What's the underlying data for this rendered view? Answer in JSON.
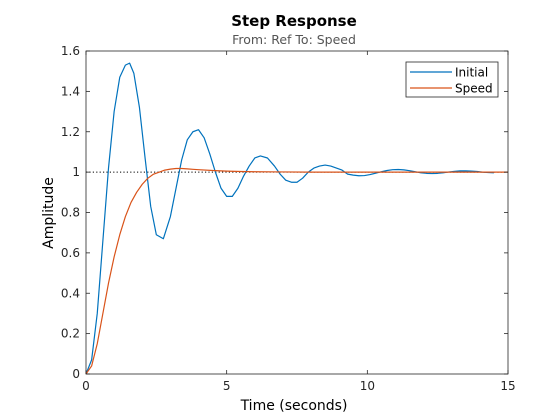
{
  "chart_data": {
    "type": "line",
    "title": "Step Response",
    "subtitle": "From: Ref  To: Speed",
    "xlabel": "Time (seconds)",
    "ylabel": "Amplitude",
    "xlim": [
      0,
      15
    ],
    "ylim": [
      0,
      1.6
    ],
    "xticks": [
      0,
      5,
      10,
      15
    ],
    "xtick_labels": [
      "0",
      "5",
      "10",
      "15"
    ],
    "yticks": [
      0,
      0.2,
      0.4,
      0.6,
      0.8,
      1.0,
      1.2,
      1.4,
      1.6
    ],
    "ytick_labels": [
      "0",
      "0.2",
      "0.4",
      "0.6",
      "0.8",
      "1",
      "1.2",
      "1.4",
      "1.6"
    ],
    "grid": false,
    "legend_position": "top-right",
    "reference_line": {
      "y": 1,
      "style": "dotted",
      "color": "#000000"
    },
    "series": [
      {
        "name": "Initial",
        "color": "#0072bd",
        "x": [
          0,
          0.2,
          0.4,
          0.6,
          0.8,
          1.0,
          1.2,
          1.4,
          1.55,
          1.7,
          1.9,
          2.1,
          2.3,
          2.5,
          2.75,
          3.0,
          3.2,
          3.4,
          3.6,
          3.8,
          4.0,
          4.2,
          4.4,
          4.6,
          4.8,
          5.0,
          5.2,
          5.4,
          5.6,
          5.8,
          6.0,
          6.2,
          6.45,
          6.7,
          6.9,
          7.1,
          7.3,
          7.5,
          7.7,
          7.9,
          8.1,
          8.3,
          8.5,
          8.7,
          8.9,
          9.1,
          9.3,
          9.5,
          9.7,
          9.9,
          10.1,
          10.3,
          10.5,
          10.7,
          10.9,
          11.1,
          11.3,
          11.5,
          11.7,
          11.9,
          12.1,
          12.3,
          12.5,
          12.7,
          12.9,
          13.1,
          13.3,
          13.5,
          13.7,
          13.9,
          14.1,
          14.3,
          14.5
        ],
        "y": [
          0,
          0.07,
          0.3,
          0.66,
          1.02,
          1.3,
          1.47,
          1.53,
          1.54,
          1.49,
          1.32,
          1.07,
          0.83,
          0.69,
          0.67,
          0.78,
          0.92,
          1.06,
          1.16,
          1.2,
          1.21,
          1.17,
          1.09,
          1.0,
          0.92,
          0.88,
          0.88,
          0.92,
          0.98,
          1.03,
          1.07,
          1.08,
          1.07,
          1.03,
          0.99,
          0.96,
          0.95,
          0.95,
          0.97,
          1.0,
          1.02,
          1.03,
          1.035,
          1.03,
          1.02,
          1.01,
          0.99,
          0.985,
          0.982,
          0.983,
          0.988,
          0.995,
          1.002,
          1.008,
          1.012,
          1.013,
          1.011,
          1.007,
          1.002,
          0.997,
          0.994,
          0.993,
          0.994,
          0.997,
          1.001,
          1.004,
          1.006,
          1.006,
          1.005,
          1.003,
          1.0,
          0.998,
          0.997
        ]
      },
      {
        "name": "Speed",
        "color": "#d95319",
        "x": [
          0,
          0.2,
          0.4,
          0.6,
          0.8,
          1.0,
          1.2,
          1.4,
          1.6,
          1.8,
          2.0,
          2.2,
          2.4,
          2.6,
          2.8,
          3.0,
          3.2,
          3.4,
          3.6,
          3.8,
          4.0,
          4.5,
          5.0,
          5.5,
          6.0,
          7.0,
          8.0,
          9.0,
          10.0,
          11.0,
          12.0,
          13.0,
          14.0,
          15.0
        ],
        "y": [
          0,
          0.04,
          0.15,
          0.3,
          0.45,
          0.58,
          0.69,
          0.78,
          0.85,
          0.9,
          0.94,
          0.97,
          0.99,
          1.0,
          1.01,
          1.015,
          1.018,
          1.018,
          1.016,
          1.014,
          1.012,
          1.008,
          1.005,
          1.003,
          1.002,
          1.001,
          1.0,
          1.0,
          1.0,
          1.0,
          1.0,
          1.0,
          1.0,
          1.0
        ]
      }
    ]
  }
}
